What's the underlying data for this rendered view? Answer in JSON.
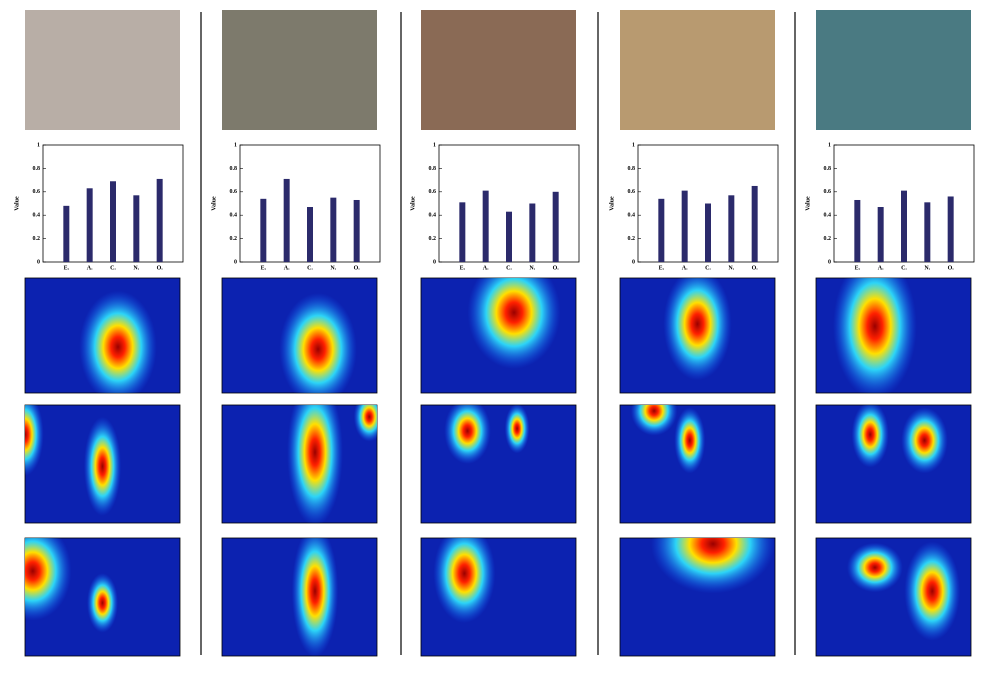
{
  "chart_data": [
    {
      "type": "bar",
      "ylabel": "Value",
      "categories": [
        "E.",
        "A.",
        "C.",
        "N.",
        "O."
      ],
      "values": [
        0.48,
        0.63,
        0.69,
        0.57,
        0.71
      ],
      "color": "#2b2a6b",
      "ylim": [
        0,
        1
      ],
      "yticks": [
        0,
        0.2,
        0.4,
        0.6,
        0.8,
        1
      ]
    },
    {
      "type": "bar",
      "ylabel": "Value",
      "categories": [
        "E.",
        "A.",
        "C.",
        "N.",
        "O."
      ],
      "values": [
        0.54,
        0.71,
        0.47,
        0.55,
        0.53
      ],
      "color": "#2b2a6b",
      "ylim": [
        0,
        1
      ],
      "yticks": [
        0,
        0.2,
        0.4,
        0.6,
        0.8,
        1
      ]
    },
    {
      "type": "bar",
      "ylabel": "Value",
      "categories": [
        "E.",
        "A.",
        "C.",
        "N.",
        "O."
      ],
      "values": [
        0.51,
        0.61,
        0.43,
        0.5,
        0.6
      ],
      "color": "#2b2a6b",
      "ylim": [
        0,
        1
      ],
      "yticks": [
        0,
        0.2,
        0.4,
        0.6,
        0.8,
        1
      ]
    },
    {
      "type": "bar",
      "ylabel": "Value",
      "categories": [
        "E.",
        "A.",
        "C.",
        "N.",
        "O."
      ],
      "values": [
        0.54,
        0.61,
        0.5,
        0.57,
        0.65
      ],
      "color": "#2b2a6b",
      "ylim": [
        0,
        1
      ],
      "yticks": [
        0,
        0.2,
        0.4,
        0.6,
        0.8,
        1
      ]
    },
    {
      "type": "bar",
      "ylabel": "Value",
      "categories": [
        "E.",
        "A.",
        "C.",
        "N.",
        "O."
      ],
      "values": [
        0.53,
        0.47,
        0.61,
        0.51,
        0.56
      ],
      "color": "#2b2a6b",
      "ylim": [
        0,
        1
      ],
      "yticks": [
        0,
        0.2,
        0.4,
        0.6,
        0.8,
        1
      ]
    }
  ]
}
